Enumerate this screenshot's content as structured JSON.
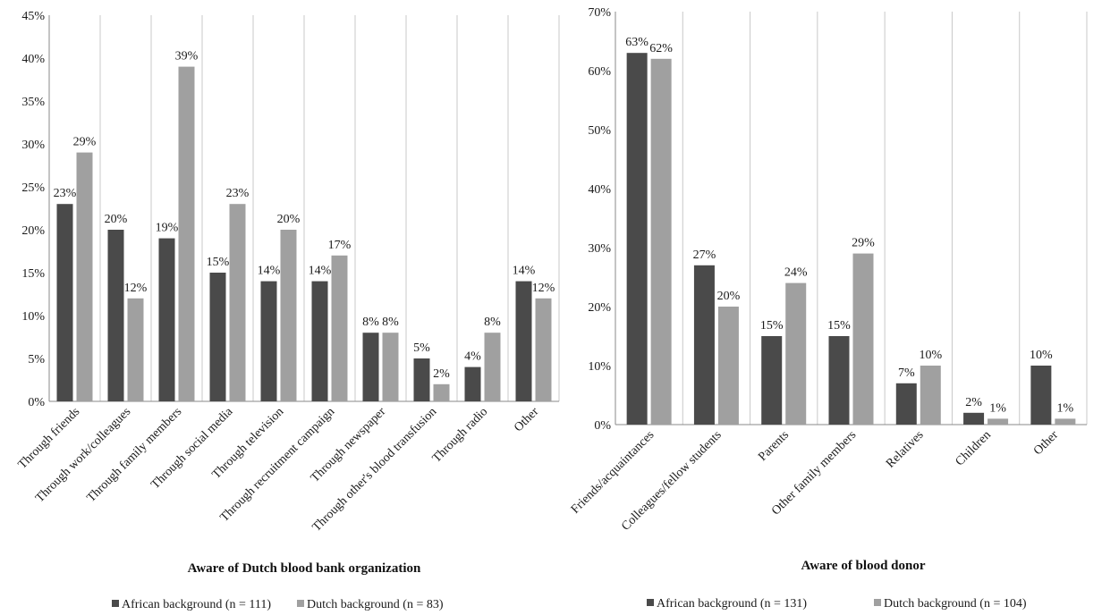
{
  "colors": {
    "african": "#4a4a4a",
    "dutch": "#a0a0a0",
    "grid": "#c8c8c8",
    "axis": "#8a8a8a"
  },
  "chart_data": [
    {
      "type": "bar",
      "title": "",
      "xlabel": "Aware of Dutch blood bank organization",
      "ylabel": "",
      "ylim": [
        0,
        45
      ],
      "yticks": [
        0,
        5,
        10,
        15,
        20,
        25,
        30,
        35,
        40,
        45
      ],
      "ytick_labels": [
        "0%",
        "5%",
        "10%",
        "15%",
        "20%",
        "25%",
        "30%",
        "35%",
        "40%",
        "45%"
      ],
      "categories": [
        "Through friends",
        "Through work/colleagues",
        "Through family members",
        "Through social media",
        "Through television",
        "Through recruitment campaign",
        "Through newspaper",
        "Through other's blood transfusion",
        "Through radio",
        "Other"
      ],
      "series": [
        {
          "name": "African background (n = 111)",
          "values": [
            23,
            20,
            19,
            15,
            14,
            14,
            8,
            5,
            4,
            14
          ],
          "labels": [
            "23%",
            "20%",
            "19%",
            "15%",
            "14%",
            "14%",
            "8%",
            "5%",
            "4%",
            "14%"
          ]
        },
        {
          "name": "Dutch background (n = 83)",
          "values": [
            29,
            12,
            39,
            23,
            20,
            17,
            8,
            2,
            8,
            12
          ],
          "labels": [
            "29%",
            "12%",
            "39%",
            "23%",
            "20%",
            "17%",
            "8%",
            "2%",
            "8%",
            "12%"
          ]
        }
      ],
      "grid": "vertical category separators",
      "legend_position": "bottom"
    },
    {
      "type": "bar",
      "title": "",
      "xlabel": "Aware of blood donor",
      "ylabel": "",
      "ylim": [
        0,
        70
      ],
      "yticks": [
        0,
        10,
        20,
        30,
        40,
        50,
        60,
        70
      ],
      "ytick_labels": [
        "0%",
        "10%",
        "20%",
        "30%",
        "40%",
        "50%",
        "60%",
        "70%"
      ],
      "categories": [
        "Friends/acquaintances",
        "Colleagues/fellow students",
        "Parents",
        "Other family members",
        "Relatives",
        "Children",
        "Other"
      ],
      "series": [
        {
          "name": "African background (n = 131)",
          "values": [
            63,
            27,
            15,
            15,
            7,
            2,
            10
          ],
          "labels": [
            "63%",
            "27%",
            "15%",
            "15%",
            "7%",
            "2%",
            "10%"
          ]
        },
        {
          "name": "Dutch background (n = 104)",
          "values": [
            62,
            20,
            24,
            29,
            10,
            1,
            1
          ],
          "labels": [
            "62%",
            "20%",
            "24%",
            "29%",
            "10%",
            "1%",
            "1%"
          ]
        }
      ],
      "grid": "vertical category separators",
      "legend_position": "bottom"
    }
  ]
}
